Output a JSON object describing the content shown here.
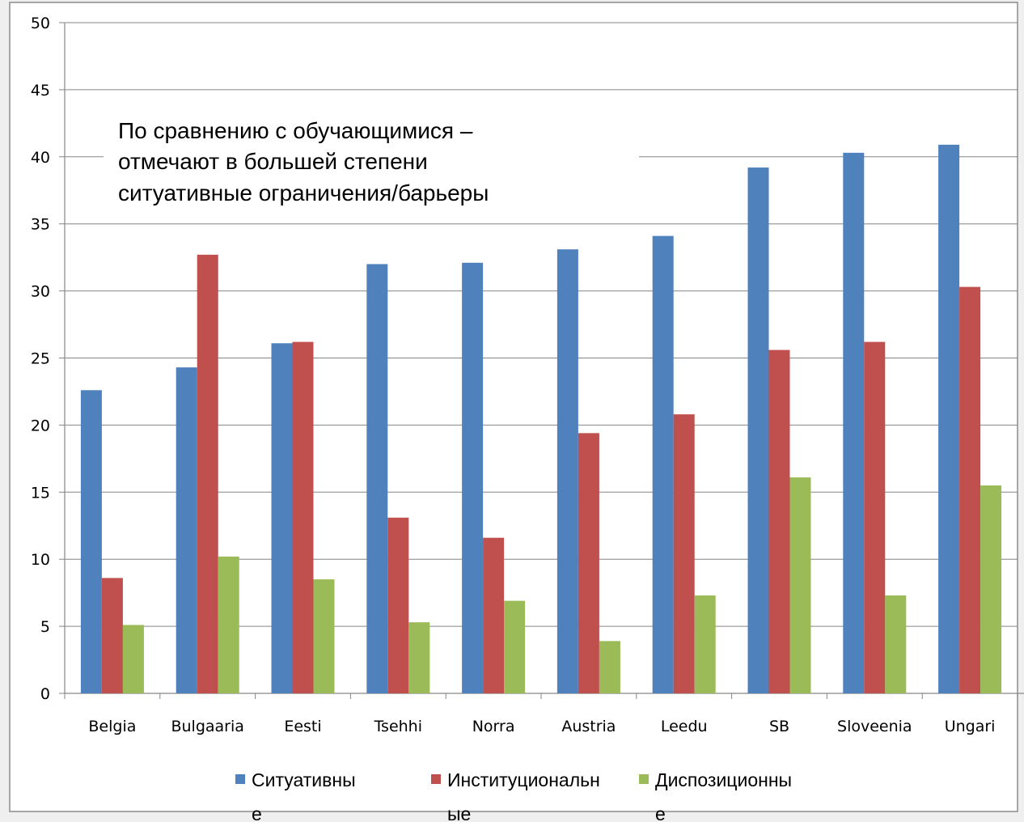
{
  "chart_data": {
    "type": "bar",
    "categories": [
      "Belgia",
      "Bulgaaria",
      "Eesti",
      "Tsehhi",
      "Norra",
      "Austria",
      "Leedu",
      "SB",
      "Sloveenia",
      "Ungari"
    ],
    "series": [
      {
        "name": "Ситуативные",
        "color": "#4f81bd",
        "values": [
          22.6,
          24.3,
          26.1,
          32.0,
          32.1,
          33.1,
          34.1,
          39.2,
          40.3,
          40.9
        ]
      },
      {
        "name": "Институциональные",
        "color": "#c0504d",
        "values": [
          8.6,
          32.7,
          26.2,
          13.1,
          11.6,
          19.4,
          20.8,
          25.6,
          26.2,
          30.3
        ]
      },
      {
        "name": "Диспозиционные",
        "color": "#9bbb59",
        "values": [
          5.1,
          10.2,
          8.5,
          5.3,
          6.9,
          3.9,
          7.3,
          16.1,
          7.3,
          15.5
        ]
      }
    ],
    "ylim": [
      0,
      50
    ],
    "yticks": [
      "0",
      "5",
      "10",
      "15",
      "20",
      "25",
      "30",
      "35",
      "40",
      "45",
      "50"
    ],
    "grid": true,
    "legend": "bottom",
    "annotation": [
      "По сравнению с обучающимися –",
      "отмечают в большей степени",
      "ситуативные ограничения/барьеры"
    ],
    "legend_display": [
      [
        "Ситуативны",
        "е"
      ],
      [
        "Институциональн",
        "ые"
      ],
      [
        "Диспозиционны",
        "е"
      ]
    ]
  }
}
